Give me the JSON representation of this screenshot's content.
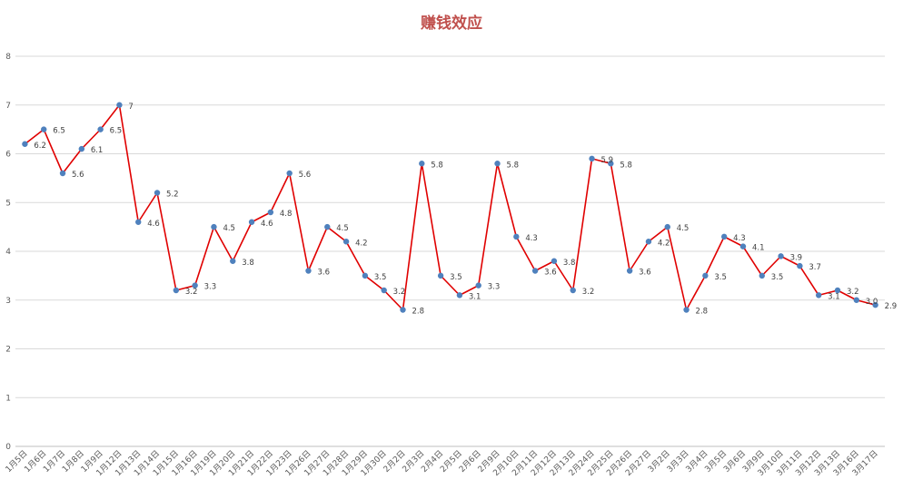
{
  "chart_data": {
    "type": "line",
    "title": "赚钱效应",
    "xlabel": "",
    "ylabel": "",
    "ylim": [
      0,
      8
    ],
    "yticks": [
      0,
      1,
      2,
      3,
      4,
      5,
      6,
      7,
      8
    ],
    "grid": true,
    "legend": "none",
    "categories": [
      "1月5日",
      "1月6日",
      "1月7日",
      "1月8日",
      "1月9日",
      "1月12日",
      "1月13日",
      "1月14日",
      "1月15日",
      "1月16日",
      "1月19日",
      "1月20日",
      "1月21日",
      "1月22日",
      "1月23日",
      "1月26日",
      "1月27日",
      "1月28日",
      "1月29日",
      "1月30日",
      "2月2日",
      "2月3日",
      "2月4日",
      "2月5日",
      "2月6日",
      "2月9日",
      "2月10日",
      "2月11日",
      "2月12日",
      "2月13日",
      "2月24日",
      "2月25日",
      "2月26日",
      "2月27日",
      "3月2日",
      "3月3日",
      "3月4日",
      "3月5日",
      "3月6日",
      "3月9日",
      "3月10日",
      "3月11日",
      "3月12日",
      "3月13日",
      "3月16日",
      "3月17日"
    ],
    "series": [
      {
        "values": [
          6.2,
          6.5,
          5.6,
          6.1,
          6.5,
          7,
          4.6,
          5.2,
          3.2,
          3.3,
          4.5,
          3.8,
          4.6,
          4.8,
          5.6,
          3.6,
          4.5,
          4.2,
          3.5,
          3.2,
          2.8,
          5.8,
          3.5,
          3.1,
          3.3,
          5.8,
          4.3,
          3.6,
          3.8,
          3.2,
          5.9,
          5.8,
          3.6,
          4.2,
          4.5,
          2.8,
          3.5,
          4.3,
          4.1,
          3.5,
          3.9,
          3.7,
          3.1,
          3.2,
          3.0,
          2.9
        ],
        "labels": [
          "6.2",
          "6.5",
          "5.6",
          "6.1",
          "6.5",
          "7",
          "4.6",
          "5.2",
          "3.2",
          "3.3",
          "4.5",
          "3.8",
          "4.6",
          "4.8",
          "5.6",
          "3.6",
          "4.5",
          "4.2",
          "3.5",
          "3.2",
          "2.8",
          "5.8",
          "3.5",
          "3.1",
          "3.3",
          "5.8",
          "4.3",
          "3.6",
          "3.8",
          "3.2",
          "5.9",
          "5.8",
          "3.6",
          "4.2",
          "4.5",
          "2.8",
          "3.5",
          "4.3",
          "4.1",
          "3.5",
          "3.9",
          "3.7",
          "3.1",
          "3.2",
          "3.0",
          "2.9"
        ]
      }
    ]
  },
  "colors": {
    "title": "#c0504d",
    "line": "#e00000",
    "marker": "#4f81bd",
    "grid": "#d9d9d9",
    "axis": "#bfbfbf"
  }
}
